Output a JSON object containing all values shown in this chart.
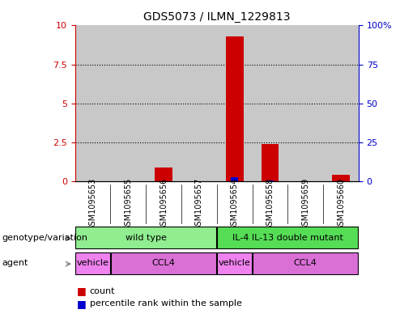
{
  "title": "GDS5073 / ILMN_1229813",
  "samples": [
    "GSM1095653",
    "GSM1095655",
    "GSM1095656",
    "GSM1095657",
    "GSM1095654",
    "GSM1095658",
    "GSM1095659",
    "GSM1095660"
  ],
  "count_values": [
    0.0,
    0.0,
    0.9,
    0.0,
    9.3,
    2.4,
    0.0,
    0.4
  ],
  "percentile_values": [
    0.0,
    0.15,
    0.15,
    0.0,
    2.4,
    0.6,
    0.0,
    0.1
  ],
  "ylim_left": [
    0,
    10
  ],
  "ylim_right": [
    0,
    100
  ],
  "yticks_left": [
    0,
    2.5,
    5,
    7.5,
    10
  ],
  "yticks_right": [
    0,
    25,
    50,
    75,
    100
  ],
  "ytick_labels_left": [
    "0",
    "2.5",
    "5",
    "7.5",
    "10"
  ],
  "ytick_labels_right": [
    "0",
    "25",
    "50",
    "75",
    "100%"
  ],
  "count_color": "#cc0000",
  "percentile_color": "#0000cc",
  "genotype_groups": [
    {
      "label": "wild type",
      "start": 0,
      "end": 3,
      "color": "#90ee90"
    },
    {
      "label": "IL-4 IL-13 double mutant",
      "start": 4,
      "end": 7,
      "color": "#55dd55"
    }
  ],
  "agent_groups": [
    {
      "label": "vehicle",
      "start": 0,
      "end": 0,
      "color": "#ee82ee"
    },
    {
      "label": "CCL4",
      "start": 1,
      "end": 3,
      "color": "#da70d6"
    },
    {
      "label": "vehicle",
      "start": 4,
      "end": 4,
      "color": "#ee82ee"
    },
    {
      "label": "CCL4",
      "start": 5,
      "end": 7,
      "color": "#da70d6"
    }
  ],
  "bg_color": "#c8c8c8",
  "legend_count_label": "count",
  "legend_percentile_label": "percentile rank within the sample",
  "genotype_label": "genotype/variation",
  "agent_label": "agent"
}
